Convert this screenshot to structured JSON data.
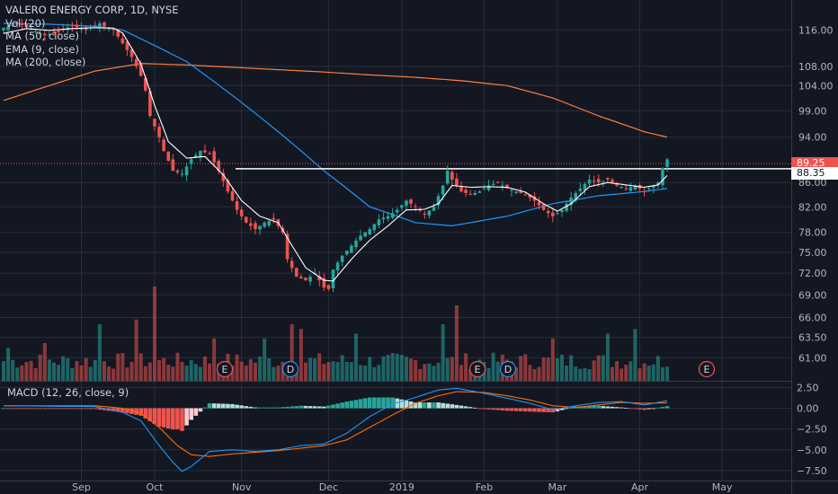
{
  "colors": {
    "background": "#131722",
    "grid": "#2a2e39",
    "up": "#26a69a",
    "down": "#ef5350",
    "ma50": "#2196f3",
    "ema9": "#ffffff",
    "ma200": "#ff7f3f",
    "macd": "#2196f3",
    "signal": "#ff6d00",
    "text": "#d1d4dc",
    "axis_text": "#b2b5be"
  },
  "legend": {
    "symbol": "VALERO ENERGY CORP, 1D, NYSE",
    "vol": "Vol (20)",
    "ma50": "MA (50, close)",
    "ema9": "EMA (9, close)",
    "ma200": "MA (200, close)"
  },
  "macd_legend": "MACD (12, 26, close, 9)",
  "price_tags": {
    "last": "89.25",
    "line": "88.35"
  },
  "event_markers": [
    {
      "label": "E",
      "date": "Oct 25",
      "kind": "earnings"
    },
    {
      "label": "D",
      "date": "Nov 14",
      "kind": "dividend"
    },
    {
      "label": "E",
      "date": "Jan 31",
      "kind": "earnings"
    },
    {
      "label": "D",
      "date": "Feb 7",
      "kind": "dividend"
    },
    {
      "label": "E",
      "date": "Apr 25",
      "kind": "earnings"
    }
  ],
  "chart_data": {
    "type": "candlestick",
    "title": "VALERO ENERGY CORP, 1D, NYSE",
    "x_tick_labels": [
      "Sep",
      "Oct",
      "Nov",
      "Dec",
      "2019",
      "Feb",
      "Mar",
      "Apr",
      "May"
    ],
    "price_axis": {
      "scale": "log",
      "tick_labels": [
        "116.00",
        "108.00",
        "104.00",
        "99.00",
        "94.00",
        "89.25",
        "86.00",
        "82.00",
        "78.00",
        "75.00",
        "72.00",
        "69.00",
        "66.00",
        "63.50",
        "61.00"
      ],
      "tick_values": [
        116,
        108,
        104,
        99,
        94,
        89.25,
        86,
        82,
        78,
        75,
        72,
        69,
        66,
        63.5,
        61
      ],
      "range": [
        58.3,
        123
      ]
    },
    "macd_axis": {
      "tick_labels": [
        "2.50",
        "0.00",
        "−2.50",
        "−5.00",
        "−7.50"
      ],
      "tick_values": [
        2.5,
        0,
        -2.5,
        -5,
        -7.5
      ],
      "range": [
        -8.7,
        3.3
      ]
    },
    "horizontal_line": 88.35,
    "last_price": 89.25,
    "close_anchors": [
      [
        0,
        116.5
      ],
      [
        3,
        117.5
      ],
      [
        6,
        116.2
      ],
      [
        9,
        114.8
      ],
      [
        12,
        115.5
      ],
      [
        15,
        117
      ],
      [
        18,
        116
      ],
      [
        21,
        117.5
      ],
      [
        22,
        116.8
      ],
      [
        24,
        116
      ],
      [
        26,
        113
      ],
      [
        28,
        110
      ],
      [
        30,
        106
      ],
      [
        31,
        103
      ],
      [
        32,
        98
      ],
      [
        34,
        94
      ],
      [
        35,
        91.5
      ],
      [
        37,
        88
      ],
      [
        39,
        87.5
      ],
      [
        41,
        90
      ],
      [
        43,
        91.5
      ],
      [
        45,
        91
      ],
      [
        47,
        88
      ],
      [
        49,
        84.5
      ],
      [
        51,
        81.5
      ],
      [
        53,
        79.5
      ],
      [
        55,
        78.5
      ],
      [
        57,
        79.5
      ],
      [
        59,
        80
      ],
      [
        61,
        78
      ],
      [
        62,
        74
      ],
      [
        64,
        71.5
      ],
      [
        66,
        71
      ],
      [
        68,
        72
      ],
      [
        70,
        70
      ],
      [
        71,
        69.8
      ],
      [
        72,
        72.5
      ],
      [
        74,
        74.5
      ],
      [
        76,
        76
      ],
      [
        78,
        77.5
      ],
      [
        80,
        78.5
      ],
      [
        82,
        80
      ],
      [
        84,
        80.5
      ],
      [
        86,
        81.5
      ],
      [
        88,
        83
      ],
      [
        90,
        82
      ],
      [
        92,
        80.8
      ],
      [
        94,
        82
      ],
      [
        96,
        85.5
      ],
      [
        97,
        88
      ],
      [
        98,
        86.5
      ],
      [
        100,
        84.5
      ],
      [
        102,
        84
      ],
      [
        104,
        84.5
      ],
      [
        106,
        85.5
      ],
      [
        108,
        86
      ],
      [
        110,
        85
      ],
      [
        112,
        84.5
      ],
      [
        114,
        84
      ],
      [
        116,
        83
      ],
      [
        118,
        81.5
      ],
      [
        120,
        80.5
      ],
      [
        122,
        81.5
      ],
      [
        124,
        83.5
      ],
      [
        126,
        85
      ],
      [
        128,
        86.5
      ],
      [
        130,
        86
      ],
      [
        132,
        86.5
      ],
      [
        134,
        85.5
      ],
      [
        136,
        85
      ],
      [
        138,
        85.5
      ],
      [
        140,
        84.5
      ],
      [
        142,
        85.5
      ],
      [
        143,
        86
      ],
      [
        144,
        88.5
      ],
      [
        145,
        90
      ]
    ],
    "ma50_anchors": [
      [
        0,
        117.5
      ],
      [
        10,
        117.3
      ],
      [
        20,
        116.8
      ],
      [
        26,
        116
      ],
      [
        30,
        114
      ],
      [
        40,
        109
      ],
      [
        50,
        102
      ],
      [
        60,
        95
      ],
      [
        70,
        88
      ],
      [
        80,
        82
      ],
      [
        90,
        79.5
      ],
      [
        98,
        79
      ],
      [
        110,
        80.5
      ],
      [
        120,
        82.5
      ],
      [
        130,
        83.8
      ],
      [
        140,
        84.5
      ],
      [
        145,
        85
      ]
    ],
    "ma200_anchors": [
      [
        0,
        101
      ],
      [
        10,
        104
      ],
      [
        20,
        107
      ],
      [
        30,
        108.6
      ],
      [
        40,
        108.3
      ],
      [
        50,
        107.8
      ],
      [
        60,
        107.3
      ],
      [
        70,
        106.8
      ],
      [
        80,
        106.2
      ],
      [
        90,
        105.7
      ],
      [
        100,
        105
      ],
      [
        110,
        104
      ],
      [
        120,
        101.5
      ],
      [
        130,
        98
      ],
      [
        140,
        95
      ],
      [
        145,
        94
      ]
    ],
    "ema9_anchors": [
      [
        0,
        115.2
      ],
      [
        5,
        116.3
      ],
      [
        10,
        115.9
      ],
      [
        15,
        116.3
      ],
      [
        20,
        116.5
      ],
      [
        24,
        116.4
      ],
      [
        26,
        115.3
      ],
      [
        30,
        108.5
      ],
      [
        33,
        100
      ],
      [
        36,
        93.2
      ],
      [
        40,
        90.2
      ],
      [
        44,
        90.5
      ],
      [
        48,
        87.3
      ],
      [
        52,
        83
      ],
      [
        56,
        80.5
      ],
      [
        60,
        79.5
      ],
      [
        63,
        76
      ],
      [
        66,
        72.8
      ],
      [
        70,
        71
      ],
      [
        72,
        70.9
      ],
      [
        76,
        74
      ],
      [
        80,
        76.8
      ],
      [
        84,
        79
      ],
      [
        88,
        81.5
      ],
      [
        92,
        81.6
      ],
      [
        95,
        82.5
      ],
      [
        98,
        85.5
      ],
      [
        102,
        85.2
      ],
      [
        106,
        85.3
      ],
      [
        110,
        85.2
      ],
      [
        114,
        84.4
      ],
      [
        118,
        82.5
      ],
      [
        121,
        81.3
      ],
      [
        124,
        82.5
      ],
      [
        128,
        85.3
      ],
      [
        132,
        86
      ],
      [
        136,
        85.6
      ],
      [
        140,
        85.2
      ],
      [
        143,
        85.6
      ],
      [
        145,
        87.2
      ]
    ],
    "macd_anchors": [
      [
        0,
        0.3
      ],
      [
        20,
        0.2
      ],
      [
        26,
        -0.5
      ],
      [
        30,
        -1.5
      ],
      [
        34,
        -4.5
      ],
      [
        37,
        -6.5
      ],
      [
        39,
        -7.6
      ],
      [
        41,
        -7
      ],
      [
        45,
        -5.2
      ],
      [
        50,
        -5
      ],
      [
        55,
        -5.2
      ],
      [
        60,
        -5
      ],
      [
        65,
        -4.5
      ],
      [
        70,
        -4.3
      ],
      [
        75,
        -3
      ],
      [
        80,
        -1
      ],
      [
        85,
        0.5
      ],
      [
        90,
        1.3
      ],
      [
        95,
        2.2
      ],
      [
        99,
        2.4
      ],
      [
        105,
        1.8
      ],
      [
        110,
        1.2
      ],
      [
        115,
        0.6
      ],
      [
        120,
        -0.2
      ],
      [
        125,
        0.3
      ],
      [
        130,
        0.7
      ],
      [
        135,
        0.8
      ],
      [
        140,
        0.4
      ],
      [
        145,
        0.9
      ]
    ],
    "signal_anchors": [
      [
        0,
        0.3
      ],
      [
        20,
        0.3
      ],
      [
        26,
        0
      ],
      [
        30,
        -0.6
      ],
      [
        34,
        -2.3
      ],
      [
        38,
        -4.5
      ],
      [
        41,
        -5.6
      ],
      [
        45,
        -5.8
      ],
      [
        50,
        -5.5
      ],
      [
        55,
        -5.3
      ],
      [
        60,
        -5.1
      ],
      [
        65,
        -4.8
      ],
      [
        70,
        -4.5
      ],
      [
        75,
        -3.8
      ],
      [
        80,
        -2.3
      ],
      [
        85,
        -0.8
      ],
      [
        90,
        0.6
      ],
      [
        95,
        1.5
      ],
      [
        99,
        2
      ],
      [
        105,
        1.9
      ],
      [
        110,
        1.5
      ],
      [
        115,
        1
      ],
      [
        120,
        0.3
      ],
      [
        125,
        0.1
      ],
      [
        130,
        0.4
      ],
      [
        135,
        0.7
      ],
      [
        140,
        0.6
      ],
      [
        145,
        0.65
      ]
    ],
    "volume_spikes": [
      [
        1,
        0.35
      ],
      [
        9,
        0.4
      ],
      [
        21,
        0.6
      ],
      [
        29,
        0.65
      ],
      [
        33,
        1.0
      ],
      [
        46,
        0.45
      ],
      [
        57,
        0.45
      ],
      [
        63,
        0.6
      ],
      [
        65,
        0.55
      ],
      [
        77,
        0.5
      ],
      [
        96,
        0.6
      ],
      [
        99,
        0.8
      ],
      [
        120,
        0.45
      ],
      [
        132,
        0.5
      ],
      [
        138,
        0.55
      ]
    ]
  }
}
